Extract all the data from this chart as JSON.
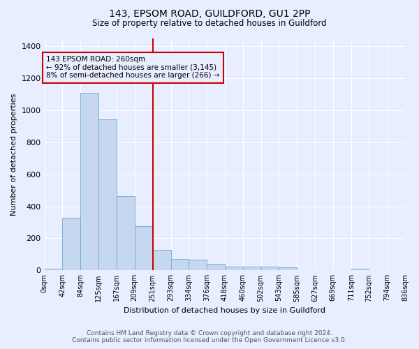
{
  "title": "143, EPSOM ROAD, GUILDFORD, GU1 2PP",
  "subtitle": "Size of property relative to detached houses in Guildford",
  "xlabel": "Distribution of detached houses by size in Guildford",
  "ylabel": "Number of detached properties",
  "footer_line1": "Contains HM Land Registry data © Crown copyright and database right 2024.",
  "footer_line2": "Contains public sector information licensed under the Open Government Licence v3.0.",
  "bar_color": "#c5d8f0",
  "bar_edge_color": "#6aaad4",
  "background_color": "#e8eeff",
  "grid_color": "#ffffff",
  "red_line_color": "#cc0000",
  "annotation_line1": "143 EPSOM ROAD: 260sqm",
  "annotation_line2": "← 92% of detached houses are smaller (3,145)",
  "annotation_line3": "8% of semi-detached houses are larger (266) →",
  "annotation_box_color": "#cc0000",
  "red_line_x": 251,
  "bins": [
    0,
    42,
    84,
    125,
    167,
    209,
    251,
    293,
    334,
    376,
    418,
    460,
    502,
    543,
    585,
    627,
    669,
    711,
    752,
    794,
    836
  ],
  "bar_heights": [
    10,
    330,
    1110,
    945,
    465,
    275,
    130,
    70,
    65,
    40,
    25,
    25,
    25,
    20,
    0,
    0,
    0,
    10,
    0,
    0
  ],
  "ylim": [
    0,
    1450
  ],
  "yticks": [
    0,
    200,
    400,
    600,
    800,
    1000,
    1200,
    1400
  ]
}
